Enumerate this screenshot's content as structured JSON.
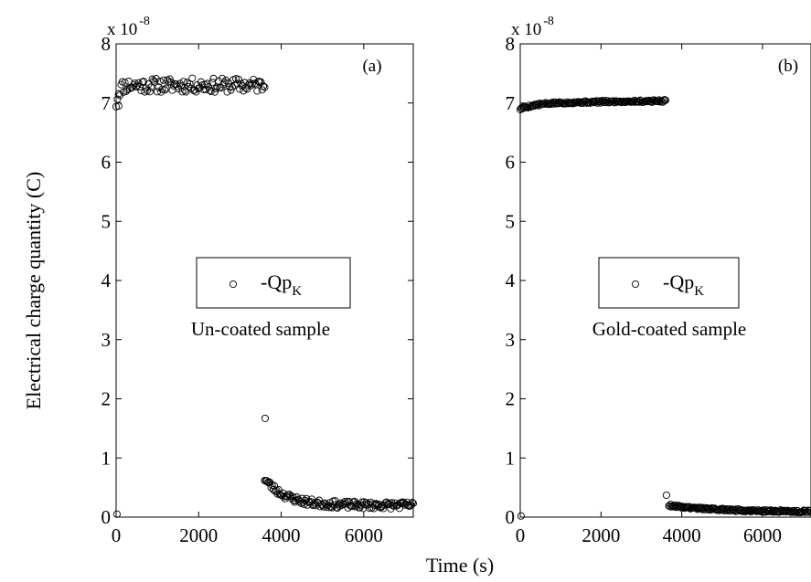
{
  "figure": {
    "xlabel": "Time (s)",
    "ylabel": "Electrical charge quantity (C)"
  },
  "chart_data": [
    {
      "type": "scatter",
      "panel_label": "(a)",
      "sample_label": "Un-coated sample",
      "multiplier": {
        "base": "x 10",
        "exponent": "-8"
      },
      "xlim": [
        0,
        7200
      ],
      "ylim": [
        0,
        8
      ],
      "x_ticks": [
        0,
        2000,
        4000,
        6000
      ],
      "y_ticks": [
        0,
        1,
        2,
        3,
        4,
        5,
        6,
        7,
        8
      ],
      "legend": {
        "label": "-Qp",
        "subscript": "K",
        "position": "center"
      },
      "series": [
        {
          "name": "-Qp_K",
          "marker": "open-circle",
          "segments": [
            {
              "x_start": 0,
              "x_end": 3600,
              "n": 120,
              "start": 7.0,
              "level": 7.3,
              "tau": 60,
              "amp": 0.12,
              "seed": 11
            },
            {
              "x_start": 3600,
              "x_end": 7200,
              "n": 140,
              "start": 0.65,
              "level": 0.2,
              "tau": 500,
              "amp": 0.06,
              "seed": 23
            }
          ],
          "extra_points": [
            {
              "x": 20,
              "y": 0.05
            },
            {
              "x": 60,
              "y": 6.95
            },
            {
              "x": 3610,
              "y": 1.67
            }
          ]
        }
      ]
    },
    {
      "type": "scatter",
      "panel_label": "(b)",
      "sample_label": "Gold-coated sample",
      "multiplier": {
        "base": "x 10",
        "exponent": "-8"
      },
      "xlim": [
        0,
        7200
      ],
      "ylim": [
        0,
        8
      ],
      "x_ticks": [
        0,
        2000,
        4000,
        6000
      ],
      "y_ticks": [
        0,
        1,
        2,
        3,
        4,
        5,
        6,
        7,
        8
      ],
      "legend": {
        "label": "-Qp",
        "subscript": "K",
        "position": "center"
      },
      "series": [
        {
          "name": "-Qp_K",
          "marker": "open-circle",
          "segments": [
            {
              "x_start": 0,
              "x_end": 3600,
              "n": 150,
              "start": 6.9,
              "level": 7.0,
              "tau": 400,
              "amp": 0.02,
              "seed": 5,
              "slope": 1e-05
            },
            {
              "x_start": 3680,
              "x_end": 7200,
              "n": 160,
              "start": 0.2,
              "level": 0.09,
              "tau": 1200,
              "amp": 0.02,
              "seed": 9
            }
          ],
          "extra_points": [
            {
              "x": 20,
              "y": 0.02
            },
            {
              "x": 3620,
              "y": 0.37
            }
          ]
        }
      ]
    }
  ]
}
